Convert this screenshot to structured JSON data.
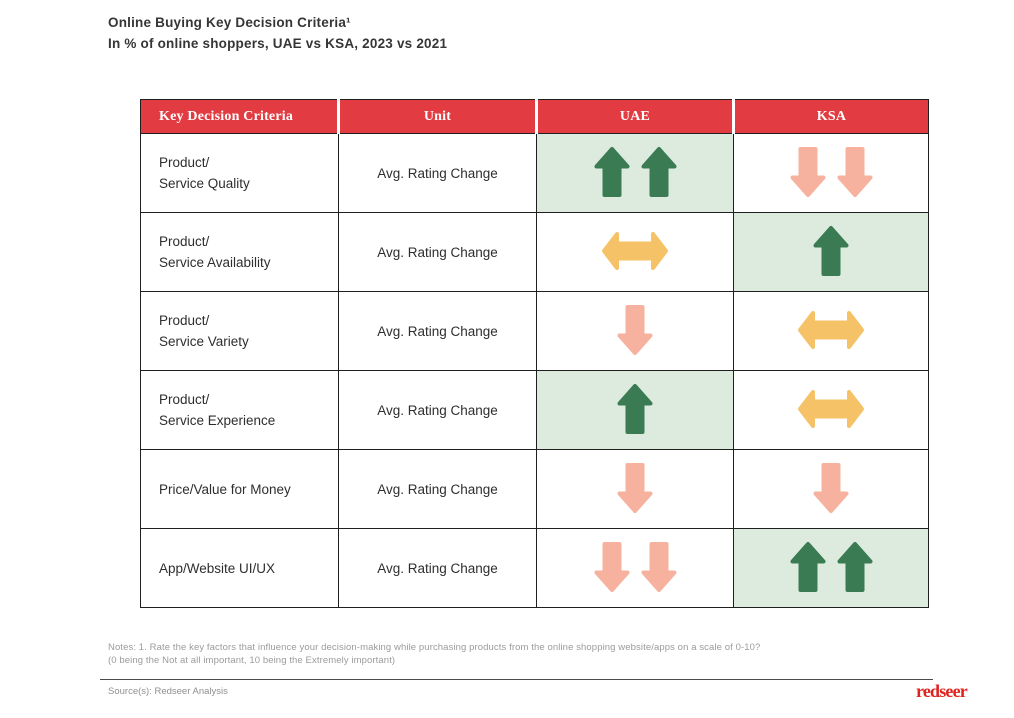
{
  "title": "Online Buying Key Decision Criteria¹",
  "subtitle": "In % of online shoppers, UAE vs KSA, 2023 vs 2021",
  "table": {
    "headers": [
      "Key Decision Criteria",
      "Unit",
      "UAE",
      "KSA"
    ],
    "rows": [
      {
        "criteria": [
          "Product/",
          "Service Quality"
        ],
        "unit": "Avg. Rating Change",
        "uae": {
          "trend": "up-double",
          "highlight": true
        },
        "ksa": {
          "trend": "down-double",
          "highlight": false
        }
      },
      {
        "criteria": [
          "Product/",
          "Service Availability"
        ],
        "unit": "Avg. Rating Change",
        "uae": {
          "trend": "neutral",
          "highlight": false
        },
        "ksa": {
          "trend": "up",
          "highlight": true
        }
      },
      {
        "criteria": [
          "Product/",
          "Service Variety"
        ],
        "unit": "Avg. Rating Change",
        "uae": {
          "trend": "down",
          "highlight": false
        },
        "ksa": {
          "trend": "neutral",
          "highlight": false
        }
      },
      {
        "criteria": [
          "Product/",
          "Service Experience"
        ],
        "unit": "Avg. Rating Change",
        "uae": {
          "trend": "up",
          "highlight": true
        },
        "ksa": {
          "trend": "neutral",
          "highlight": false
        }
      },
      {
        "criteria": [
          "Price/Value for Money"
        ],
        "unit": "Avg. Rating Change",
        "uae": {
          "trend": "down",
          "highlight": false
        },
        "ksa": {
          "trend": "down",
          "highlight": false
        }
      },
      {
        "criteria": [
          "App/Website UI/UX"
        ],
        "unit": "Avg. Rating Change",
        "uae": {
          "trend": "down-double",
          "highlight": false
        },
        "ksa": {
          "trend": "up-double",
          "highlight": true
        }
      }
    ]
  },
  "colors": {
    "header_bg": "#E23B41",
    "up_arrow": "#3A7B53",
    "down_arrow": "#F6B29E",
    "neutral_arrow": "#F5C267",
    "highlight_bg": "#DCEBDE",
    "logo_red": "#E0231F"
  },
  "notes": [
    "Notes: 1. Rate the key factors that influence your decision-making while purchasing products from the online shopping website/apps on a scale of 0-10?",
    "(0 being the Not at all important, 10 being the Extremely important)"
  ],
  "source": "Source(s): Redseer Analysis",
  "logo": "redseer",
  "chart_data": {
    "type": "table",
    "title": "Online Buying Key Decision Criteria¹",
    "subtitle": "In % of online shoppers, UAE vs KSA, 2023 vs 2021",
    "columns": [
      "Key Decision Criteria",
      "Unit",
      "UAE",
      "KSA"
    ],
    "rows": [
      {
        "criteria": "Product/Service Quality",
        "unit": "Avg. Rating Change",
        "uae": "strong increase",
        "ksa": "strong decrease"
      },
      {
        "criteria": "Product/Service Availability",
        "unit": "Avg. Rating Change",
        "uae": "no change",
        "ksa": "increase"
      },
      {
        "criteria": "Product/Service Variety",
        "unit": "Avg. Rating Change",
        "uae": "decrease",
        "ksa": "no change"
      },
      {
        "criteria": "Product/Service Experience",
        "unit": "Avg. Rating Change",
        "uae": "increase",
        "ksa": "no change"
      },
      {
        "criteria": "Price/Value for Money",
        "unit": "Avg. Rating Change",
        "uae": "decrease",
        "ksa": "decrease"
      },
      {
        "criteria": "App/Website UI/UX",
        "unit": "Avg. Rating Change",
        "uae": "strong decrease",
        "ksa": "strong increase"
      }
    ],
    "legend": {
      "green-up-arrow": "rating increased (double arrow = strong increase), cell shaded light green",
      "salmon-down-arrow": "rating decreased (double arrow = strong decrease)",
      "amber-left-right-arrow": "no significant change"
    }
  }
}
